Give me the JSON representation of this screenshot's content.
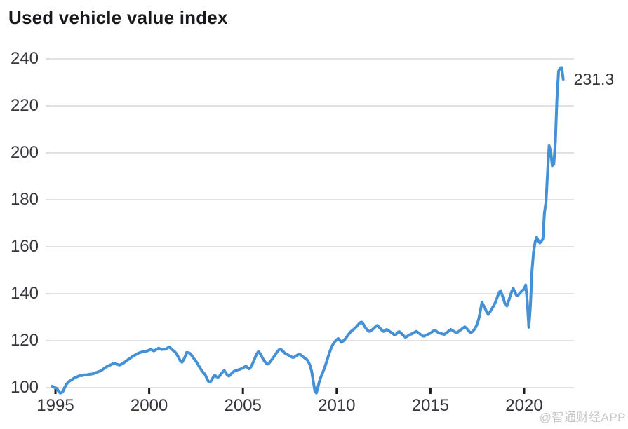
{
  "watermark": "@智通财经APP",
  "chart_data": {
    "type": "line",
    "title": "Used vehicle value index",
    "series_name": "Used vehicle value index",
    "start_month": "1994-11",
    "frequency": "monthly",
    "end_label": "231.3",
    "y_ticks": [
      100,
      120,
      140,
      160,
      180,
      200,
      220,
      240
    ],
    "x_ticks": [
      1995,
      2000,
      2005,
      2010,
      2015,
      2020
    ],
    "ylim": [
      97,
      240
    ],
    "xlim": [
      1994.8,
      2022.2
    ],
    "grid": true,
    "legend": "none",
    "line_color": "#4591d7",
    "grid_color": "#d7d7d7",
    "tick_color": "#1c1c20",
    "label_color": "#36373d",
    "values": [
      100.6,
      100.2,
      100.0,
      99.6,
      98.4,
      97.7,
      97.9,
      98.6,
      100.2,
      101.4,
      102.2,
      102.8,
      103.2,
      103.6,
      104.1,
      104.4,
      104.7,
      105.0,
      105.2,
      105.1,
      105.3,
      105.5,
      105.4,
      105.6,
      105.7,
      105.8,
      105.9,
      106.1,
      106.4,
      106.7,
      106.9,
      107.2,
      107.6,
      108.1,
      108.6,
      109.0,
      109.3,
      109.6,
      109.9,
      110.2,
      110.4,
      110.1,
      109.8,
      109.6,
      109.9,
      110.3,
      110.7,
      111.2,
      111.7,
      112.2,
      112.6,
      113.1,
      113.5,
      113.9,
      114.3,
      114.6,
      114.9,
      115.1,
      115.3,
      115.4,
      115.5,
      115.7,
      116.0,
      116.3,
      115.9,
      115.6,
      116.0,
      116.4,
      116.8,
      116.5,
      116.2,
      116.4,
      116.3,
      116.5,
      117.0,
      117.3,
      116.6,
      116.0,
      115.5,
      114.8,
      113.8,
      112.6,
      111.4,
      110.8,
      111.8,
      113.2,
      115.0,
      114.9,
      114.6,
      113.9,
      113.0,
      112.0,
      111.2,
      110.2,
      109.0,
      107.9,
      106.9,
      106.2,
      105.3,
      103.8,
      102.6,
      102.4,
      103.2,
      104.5,
      105.3,
      104.7,
      104.4,
      104.9,
      105.8,
      106.7,
      107.3,
      106.4,
      105.3,
      104.9,
      105.5,
      106.2,
      106.8,
      107.2,
      107.4,
      107.6,
      107.8,
      108.1,
      108.4,
      108.8,
      109.1,
      108.5,
      108.0,
      108.7,
      110.0,
      111.5,
      113.1,
      114.5,
      115.4,
      114.5,
      113.3,
      112.1,
      111.1,
      110.3,
      110.0,
      110.7,
      111.5,
      112.4,
      113.3,
      114.3,
      115.3,
      116.0,
      116.4,
      115.9,
      115.2,
      114.6,
      114.2,
      113.9,
      113.5,
      113.1,
      112.8,
      113.0,
      113.5,
      113.9,
      114.3,
      113.9,
      113.4,
      112.9,
      112.4,
      111.9,
      110.9,
      109.5,
      106.9,
      102.9,
      98.8,
      97.7,
      100.2,
      102.8,
      104.7,
      106.3,
      108.0,
      109.9,
      112.0,
      114.1,
      116.0,
      117.6,
      118.8,
      119.7,
      120.4,
      120.9,
      120.2,
      119.3,
      119.7,
      120.4,
      121.2,
      122.1,
      123.0,
      123.8,
      124.4,
      124.9,
      125.5,
      126.2,
      127.0,
      127.7,
      127.9,
      127.1,
      125.9,
      125.0,
      124.3,
      123.9,
      124.3,
      124.8,
      125.4,
      126.0,
      126.5,
      125.9,
      125.1,
      124.4,
      123.9,
      124.3,
      124.8,
      124.4,
      123.9,
      123.5,
      123.0,
      122.4,
      122.7,
      123.4,
      123.9,
      123.3,
      122.7,
      122.0,
      121.4,
      121.8,
      122.2,
      122.6,
      122.9,
      123.2,
      123.6,
      124.0,
      123.5,
      123.0,
      122.5,
      122.0,
      121.9,
      122.3,
      122.6,
      122.9,
      123.2,
      123.7,
      124.2,
      124.4,
      123.9,
      123.5,
      123.2,
      123.0,
      122.8,
      122.7,
      123.2,
      123.7,
      124.3,
      124.8,
      124.4,
      124.0,
      123.6,
      123.4,
      123.9,
      124.4,
      124.9,
      125.4,
      125.9,
      125.4,
      124.6,
      123.8,
      123.4,
      123.9,
      124.7,
      125.7,
      127.2,
      129.4,
      132.8,
      136.4,
      135.0,
      133.8,
      132.2,
      131.2,
      132.1,
      133.2,
      134.3,
      135.5,
      137.0,
      138.8,
      140.6,
      141.3,
      139.3,
      137.2,
      135.3,
      134.8,
      136.7,
      138.9,
      140.9,
      142.3,
      140.9,
      139.4,
      139.3,
      140.1,
      140.8,
      141.5,
      141.9,
      143.7,
      136.5,
      125.7,
      134.5,
      149.4,
      157.7,
      161.9,
      164.1,
      162.7,
      161.6,
      162.3,
      163.3,
      174.4,
      179.2,
      191.6,
      203.0,
      200.4,
      194.5,
      195.2,
      204.8,
      223.7,
      234.6,
      236.2,
      236.3,
      231.3
    ]
  }
}
